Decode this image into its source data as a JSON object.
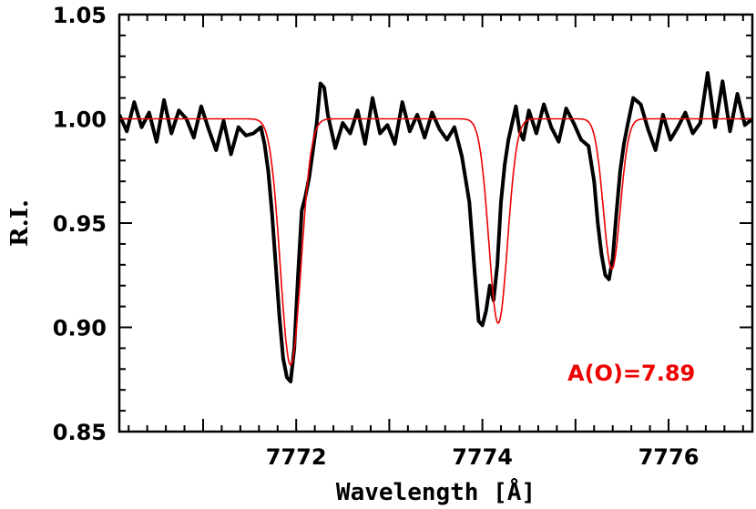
{
  "chart_data": {
    "type": "line",
    "title": "",
    "xlabel": "Wavelength [Å]",
    "ylabel": "R.I.",
    "xlim": [
      7770.1,
      7776.9
    ],
    "ylim": [
      0.85,
      1.05
    ],
    "x_ticks": [
      {
        "value": 7772,
        "label": "7772"
      },
      {
        "value": 7774,
        "label": "7774"
      },
      {
        "value": 7776,
        "label": "7776"
      }
    ],
    "y_ticks": [
      {
        "value": 0.85,
        "label": "0.85"
      },
      {
        "value": 0.9,
        "label": "0.90"
      },
      {
        "value": 0.95,
        "label": "0.95"
      },
      {
        "value": 1.0,
        "label": "1.00"
      },
      {
        "value": 1.05,
        "label": "1.05"
      }
    ],
    "annotation": {
      "text": "A(O)=7.89",
      "x": 7775.6,
      "y": 0.878,
      "color": "#ee0000"
    },
    "series": [
      {
        "role": "observed",
        "color": "#000000",
        "x": [
          7770.1,
          7770.18,
          7770.26,
          7770.34,
          7770.42,
          7770.5,
          7770.58,
          7770.66,
          7770.74,
          7770.82,
          7770.9,
          7770.98,
          7771.06,
          7771.14,
          7771.22,
          7771.3,
          7771.38,
          7771.46,
          7771.54,
          7771.62,
          7771.66,
          7771.7,
          7771.74,
          7771.78,
          7771.82,
          7771.86,
          7771.9,
          7771.94,
          7771.98,
          7772.02,
          7772.06,
          7772.1,
          7772.14,
          7772.18,
          7772.22,
          7772.26,
          7772.3,
          7772.34,
          7772.38,
          7772.42,
          7772.5,
          7772.58,
          7772.66,
          7772.74,
          7772.82,
          7772.9,
          7772.98,
          7773.06,
          7773.14,
          7773.22,
          7773.3,
          7773.38,
          7773.46,
          7773.54,
          7773.62,
          7773.7,
          7773.78,
          7773.86,
          7773.92,
          7773.96,
          7774.0,
          7774.04,
          7774.08,
          7774.12,
          7774.16,
          7774.2,
          7774.24,
          7774.28,
          7774.32,
          7774.36,
          7774.4,
          7774.44,
          7774.5,
          7774.58,
          7774.66,
          7774.74,
          7774.82,
          7774.9,
          7774.98,
          7775.06,
          7775.14,
          7775.2,
          7775.24,
          7775.28,
          7775.32,
          7775.36,
          7775.4,
          7775.44,
          7775.48,
          7775.52,
          7775.56,
          7775.62,
          7775.7,
          7775.78,
          7775.86,
          7775.94,
          7776.02,
          7776.1,
          7776.18,
          7776.26,
          7776.34,
          7776.42,
          7776.5,
          7776.58,
          7776.66,
          7776.74,
          7776.82,
          7776.9
        ],
        "y": [
          1.002,
          0.994,
          1.008,
          0.996,
          1.003,
          0.989,
          1.009,
          0.993,
          1.004,
          1.0,
          0.991,
          1.006,
          0.995,
          0.985,
          0.999,
          0.983,
          0.996,
          0.992,
          0.993,
          0.996,
          0.988,
          0.975,
          0.955,
          0.93,
          0.905,
          0.885,
          0.876,
          0.874,
          0.89,
          0.925,
          0.956,
          0.963,
          0.972,
          0.985,
          0.998,
          1.017,
          1.015,
          1.002,
          0.994,
          0.986,
          0.998,
          0.993,
          1.004,
          0.988,
          1.01,
          0.993,
          0.997,
          0.988,
          1.008,
          0.994,
          1.002,
          0.991,
          1.003,
          0.995,
          0.99,
          0.996,
          0.982,
          0.96,
          0.925,
          0.903,
          0.901,
          0.908,
          0.92,
          0.913,
          0.93,
          0.96,
          0.978,
          0.99,
          0.998,
          1.006,
          0.994,
          0.99,
          1.004,
          0.993,
          1.007,
          0.996,
          0.989,
          1.005,
          0.998,
          0.99,
          0.987,
          0.97,
          0.95,
          0.935,
          0.925,
          0.923,
          0.933,
          0.955,
          0.975,
          0.988,
          0.997,
          1.01,
          1.007,
          0.995,
          0.985,
          1.002,
          0.99,
          0.996,
          1.003,
          0.993,
          0.998,
          1.022,
          0.996,
          1.018,
          0.994,
          1.012,
          0.997,
          1.0
        ]
      },
      {
        "role": "model",
        "color": "#ee0000",
        "profile": "gaussian",
        "continuum": 1.0,
        "lines": [
          {
            "center": 7771.94,
            "depth": 0.118,
            "sigma": 0.11
          },
          {
            "center": 7774.17,
            "depth": 0.098,
            "sigma": 0.1
          },
          {
            "center": 7775.39,
            "depth": 0.072,
            "sigma": 0.09
          }
        ]
      }
    ]
  }
}
